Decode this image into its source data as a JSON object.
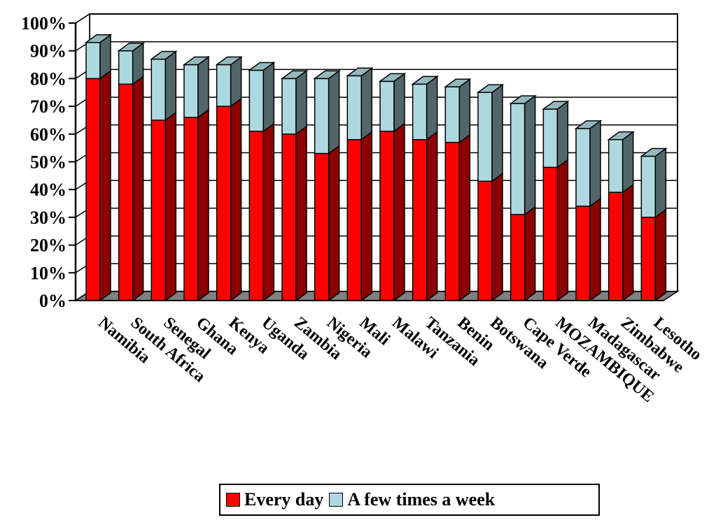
{
  "chart_data": {
    "type": "bar",
    "stacked": true,
    "three_d": true,
    "categories": [
      "Namibia",
      "South Africa",
      "Senegal",
      "Ghana",
      "Kenya",
      "Uganda",
      "Zambia",
      "Nigeria",
      "Mali",
      "Malawi",
      "Tanzania",
      "Benin",
      "Botswana",
      "Cape Verde",
      "MOZAMBIQUE",
      "Madagascar",
      "Zimbabwe",
      "Lesotho"
    ],
    "series": [
      {
        "name": "Every day",
        "color": "#ff0000",
        "values": [
          80,
          78,
          65,
          66,
          70,
          61,
          60,
          53,
          58,
          61,
          58,
          57,
          43,
          31,
          48,
          34,
          39,
          30
        ]
      },
      {
        "name": "A few times a week",
        "color": "#aed8df",
        "values": [
          13,
          12,
          22,
          19,
          15,
          22,
          20,
          27,
          23,
          18,
          20,
          20,
          32,
          40,
          21,
          28,
          19,
          22
        ]
      }
    ],
    "yticks": [
      "0%",
      "10%",
      "20%",
      "30%",
      "40%",
      "50%",
      "60%",
      "70%",
      "80%",
      "90%",
      "100%"
    ],
    "ylim": [
      0,
      100
    ],
    "grid": true,
    "legend_position": "bottom"
  }
}
